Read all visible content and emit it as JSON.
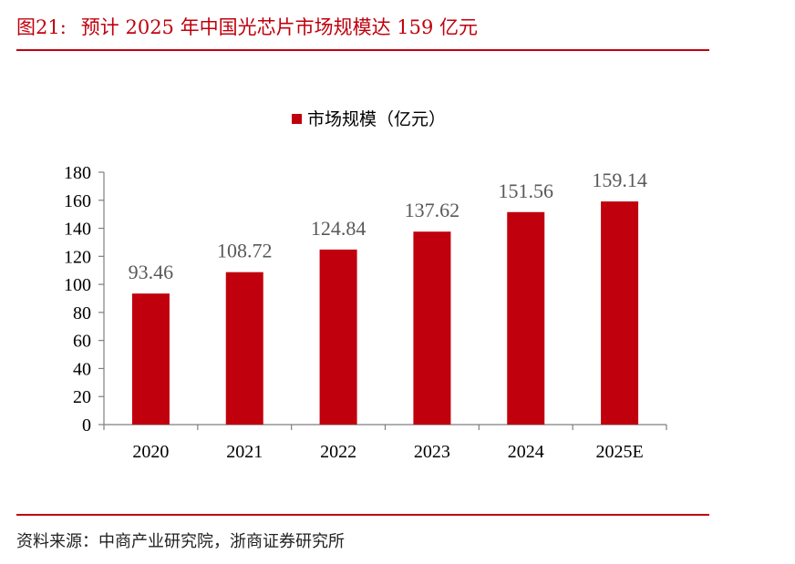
{
  "figure": {
    "number": "图21:",
    "title": "预计 2025 年中国光芯片市场规模达 159 亿元",
    "source": "资料来源：中商产业研究院，浙商证券研究所"
  },
  "colors": {
    "accent": "#c0000c",
    "bar": "#c0000c"
  },
  "chart_data": {
    "type": "bar",
    "categories": [
      "2020",
      "2021",
      "2022",
      "2023",
      "2024",
      "2025E"
    ],
    "series": [
      {
        "name": "市场规模（亿元）",
        "values": [
          93.46,
          108.72,
          124.84,
          137.62,
          151.56,
          159.14
        ]
      }
    ],
    "data_labels": [
      "93.46",
      "108.72",
      "124.84",
      "137.62",
      "151.56",
      "159.14"
    ],
    "ylim": [
      0,
      180
    ],
    "yticks": [
      0,
      20,
      40,
      60,
      80,
      100,
      120,
      140,
      160,
      180
    ],
    "legend_position": "top-center",
    "grid": false
  }
}
